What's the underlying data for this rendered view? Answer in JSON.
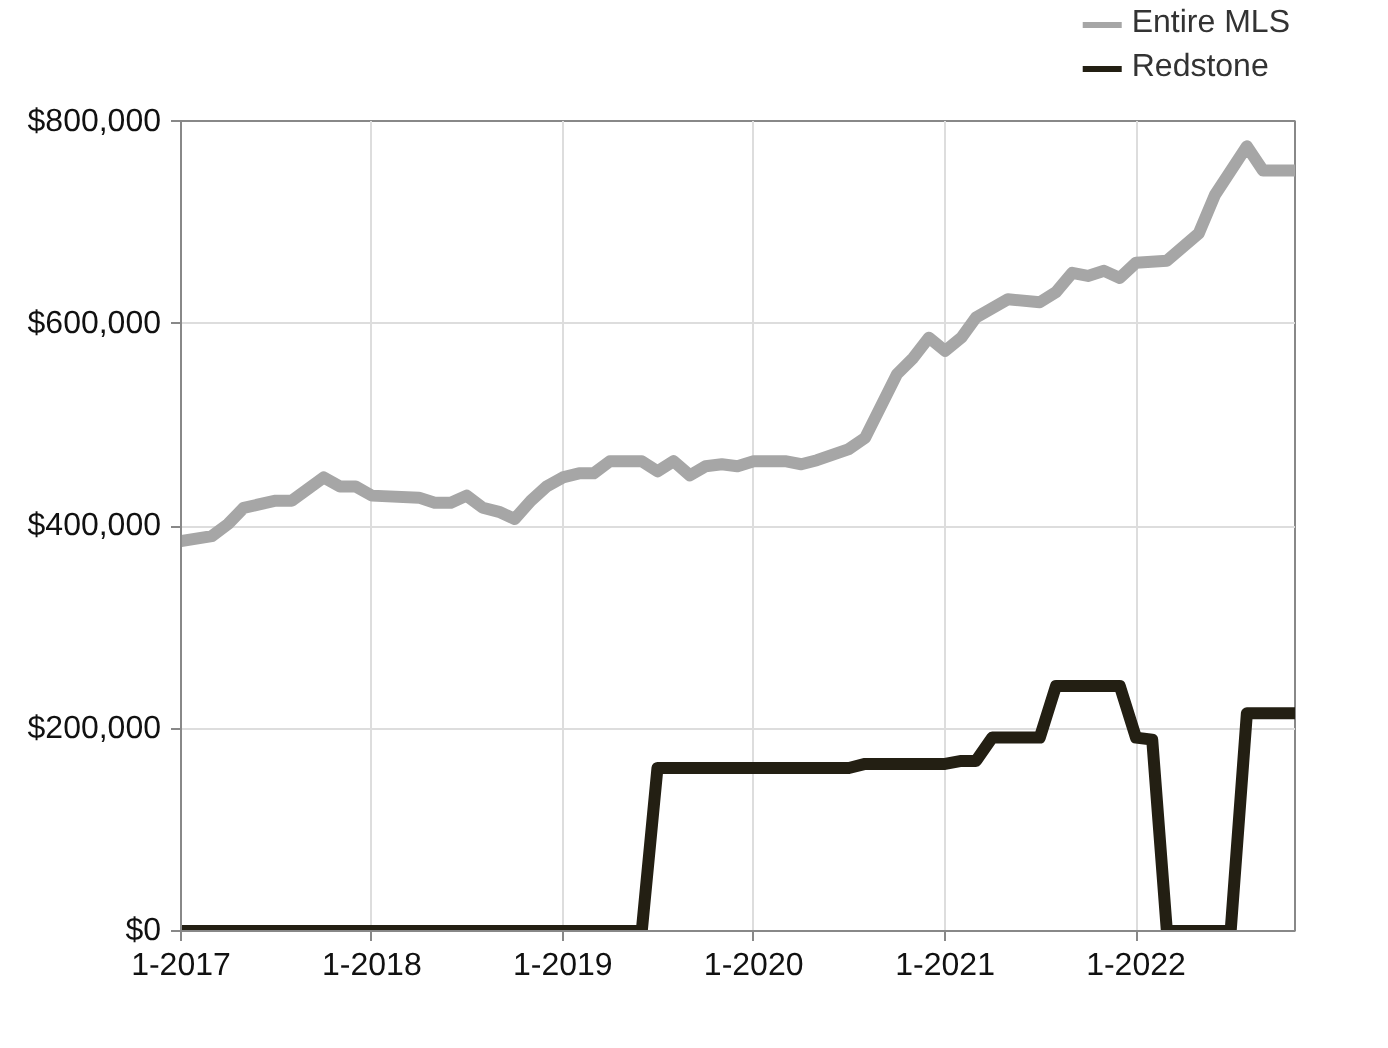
{
  "chart_data": {
    "type": "line",
    "legend": "top right",
    "grid": true,
    "line_style": "solid",
    "marker": "none",
    "xlim": [
      "2017-01",
      "2022-11"
    ],
    "xticks": [
      {
        "value": "2017-01",
        "label": "1-2017"
      },
      {
        "value": "2018-01",
        "label": "1-2018"
      },
      {
        "value": "2019-01",
        "label": "1-2019"
      },
      {
        "value": "2020-01",
        "label": "1-2020"
      },
      {
        "value": "2021-01",
        "label": "1-2021"
      },
      {
        "value": "2022-01",
        "label": "1-2022"
      }
    ],
    "ylim": [
      0,
      800000
    ],
    "yticks": [
      {
        "value": 0,
        "label": "$0"
      },
      {
        "value": 200000,
        "label": "$200,000"
      },
      {
        "value": 400000,
        "label": "$400,000"
      },
      {
        "value": 600000,
        "label": "$600,000"
      },
      {
        "value": 800000,
        "label": "$800,000"
      }
    ],
    "series": [
      {
        "name": "Entire MLS",
        "color": "#a6a6a6",
        "x": [
          "2017-01",
          "2017-03",
          "2017-04",
          "2017-05",
          "2017-07",
          "2017-08",
          "2017-10",
          "2017-11",
          "2017-12",
          "2018-01",
          "2018-04",
          "2018-05",
          "2018-06",
          "2018-07",
          "2018-08",
          "2018-09",
          "2018-10",
          "2018-11",
          "2018-12",
          "2019-01",
          "2019-02",
          "2019-03",
          "2019-04",
          "2019-06",
          "2019-07",
          "2019-08",
          "2019-09",
          "2019-10",
          "2019-11",
          "2019-12",
          "2020-01",
          "2020-03",
          "2020-04",
          "2020-05",
          "2020-07",
          "2020-08",
          "2020-10",
          "2020-11",
          "2020-12",
          "2021-01",
          "2021-02",
          "2021-03",
          "2021-05",
          "2021-07",
          "2021-08",
          "2021-09",
          "2021-10",
          "2021-11",
          "2021-12",
          "2022-01",
          "2022-03",
          "2022-05",
          "2022-06",
          "2022-08",
          "2022-09",
          "2022-11"
        ],
        "values": [
          385000,
          390000,
          402000,
          418000,
          425000,
          425000,
          448000,
          439000,
          439000,
          430000,
          428000,
          423000,
          423000,
          430000,
          418000,
          414000,
          407000,
          425000,
          439000,
          448000,
          452000,
          452000,
          464000,
          464000,
          454000,
          464000,
          450000,
          459000,
          461000,
          459000,
          464000,
          464000,
          461000,
          465000,
          476000,
          487000,
          550000,
          566000,
          586000,
          573000,
          586000,
          606000,
          624000,
          621000,
          631000,
          650000,
          647000,
          652000,
          645000,
          660000,
          662000,
          689000,
          727000,
          775000,
          751000,
          751000
        ]
      },
      {
        "name": "Redstone",
        "color": "#231f13",
        "x": [
          "2017-01",
          "2019-06",
          "2019-07",
          "2020-07",
          "2020-08",
          "2021-01",
          "2021-02",
          "2021-03",
          "2021-04",
          "2021-07",
          "2021-08",
          "2021-12",
          "2022-01",
          "2022-02",
          "2022-03",
          "2022-07",
          "2022-08",
          "2022-11"
        ],
        "values": [
          0,
          0,
          161000,
          161000,
          165000,
          165000,
          168000,
          168000,
          191000,
          191000,
          242000,
          242000,
          191000,
          189000,
          0,
          0,
          215000,
          215000
        ]
      }
    ]
  }
}
